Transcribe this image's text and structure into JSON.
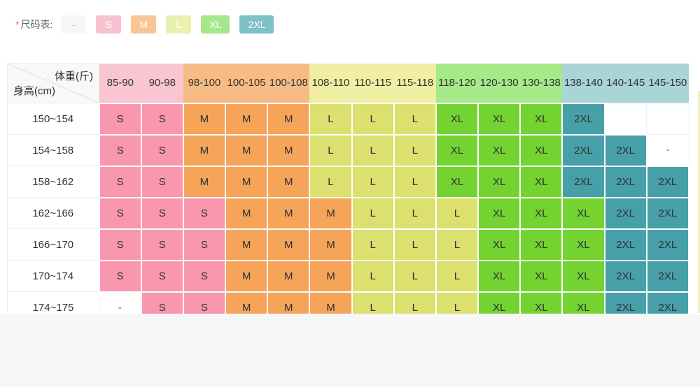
{
  "legend": {
    "required_mark": "*",
    "title": "尺码表:",
    "chips": [
      {
        "label": "-",
        "bg": "#f7f7f8",
        "color": "#c0c4cc"
      },
      {
        "label": "S",
        "bg": "#f9c2d0",
        "color": "#ffffff"
      },
      {
        "label": "M",
        "bg": "#fac594",
        "color": "#ffffff"
      },
      {
        "label": "L",
        "bg": "#eaf0b0",
        "color": "#ffffff"
      },
      {
        "label": "XL",
        "bg": "#a5e88c",
        "color": "#ffffff"
      },
      {
        "label": "2XL",
        "bg": "#7fc0c9",
        "color": "#ffffff"
      }
    ]
  },
  "table": {
    "corner": {
      "top_right": "体重(斤)",
      "bottom_left": "身高(cm)"
    },
    "columns": [
      {
        "label": "85-90",
        "group": "S"
      },
      {
        "label": "90-98",
        "group": "S"
      },
      {
        "label": "98-100",
        "group": "M"
      },
      {
        "label": "100-105",
        "group": "M"
      },
      {
        "label": "100-108",
        "group": "M"
      },
      {
        "label": "108-110",
        "group": "L"
      },
      {
        "label": "110-115",
        "group": "L"
      },
      {
        "label": "115-118",
        "group": "L"
      },
      {
        "label": "118-120",
        "group": "XL"
      },
      {
        "label": "120-130",
        "group": "XL"
      },
      {
        "label": "130-138",
        "group": "XL"
      },
      {
        "label": "138-140",
        "group": "2XL"
      },
      {
        "label": "140-145",
        "group": "2XL"
      },
      {
        "label": "145-150",
        "group": "2XL"
      }
    ],
    "rows": [
      {
        "height": "150~154",
        "cells": [
          "S",
          "S",
          "M",
          "M",
          "M",
          "L",
          "L",
          "L",
          "XL",
          "XL",
          "XL",
          "2XL",
          "",
          ""
        ]
      },
      {
        "height": "154~158",
        "cells": [
          "S",
          "S",
          "M",
          "M",
          "M",
          "L",
          "L",
          "L",
          "XL",
          "XL",
          "XL",
          "2XL",
          "2XL",
          "-"
        ]
      },
      {
        "height": "158~162",
        "cells": [
          "S",
          "S",
          "M",
          "M",
          "M",
          "L",
          "L",
          "L",
          "XL",
          "XL",
          "XL",
          "2XL",
          "2XL",
          "2XL"
        ]
      },
      {
        "height": "162~166",
        "cells": [
          "S",
          "S",
          "S",
          "M",
          "M",
          "M",
          "L",
          "L",
          "L",
          "XL",
          "XL",
          "XL",
          "2XL",
          "2XL"
        ]
      },
      {
        "height": "166~170",
        "cells": [
          "S",
          "S",
          "S",
          "M",
          "M",
          "M",
          "L",
          "L",
          "L",
          "XL",
          "XL",
          "XL",
          "2XL",
          "2XL"
        ]
      },
      {
        "height": "170~174",
        "cells": [
          "S",
          "S",
          "S",
          "M",
          "M",
          "M",
          "L",
          "L",
          "L",
          "XL",
          "XL",
          "XL",
          "2XL",
          "2XL"
        ]
      },
      {
        "height": "174~175",
        "cells": [
          "-",
          "S",
          "S",
          "M",
          "M",
          "M",
          "L",
          "L",
          "L",
          "XL",
          "XL",
          "XL",
          "2XL",
          "2XL"
        ]
      }
    ],
    "size_colors": {
      "S": "#f997af",
      "M": "#f5a45a",
      "L": "#dce06e",
      "XL": "#74d231",
      "2XL": "#47a0a8"
    },
    "header_colors": {
      "S": "#fac5d2",
      "M": "#f7bc85",
      "L": "#f1efa3",
      "XL": "#a5e989",
      "2XL": "#a9d4d8"
    }
  },
  "colors": {
    "required_red": "#f56c6c",
    "field_label_text": "#606266",
    "cell_text": "#303133",
    "dash_text": "#5f6368",
    "grid_line_white": "#ffffff",
    "grid_line_gray": "#eceef3",
    "corner_bg": "#f8f8f9",
    "corner_diagonal": "#dcdfe6",
    "page_bg": "#ffffff",
    "lower_bg": "#f7f7f8"
  }
}
